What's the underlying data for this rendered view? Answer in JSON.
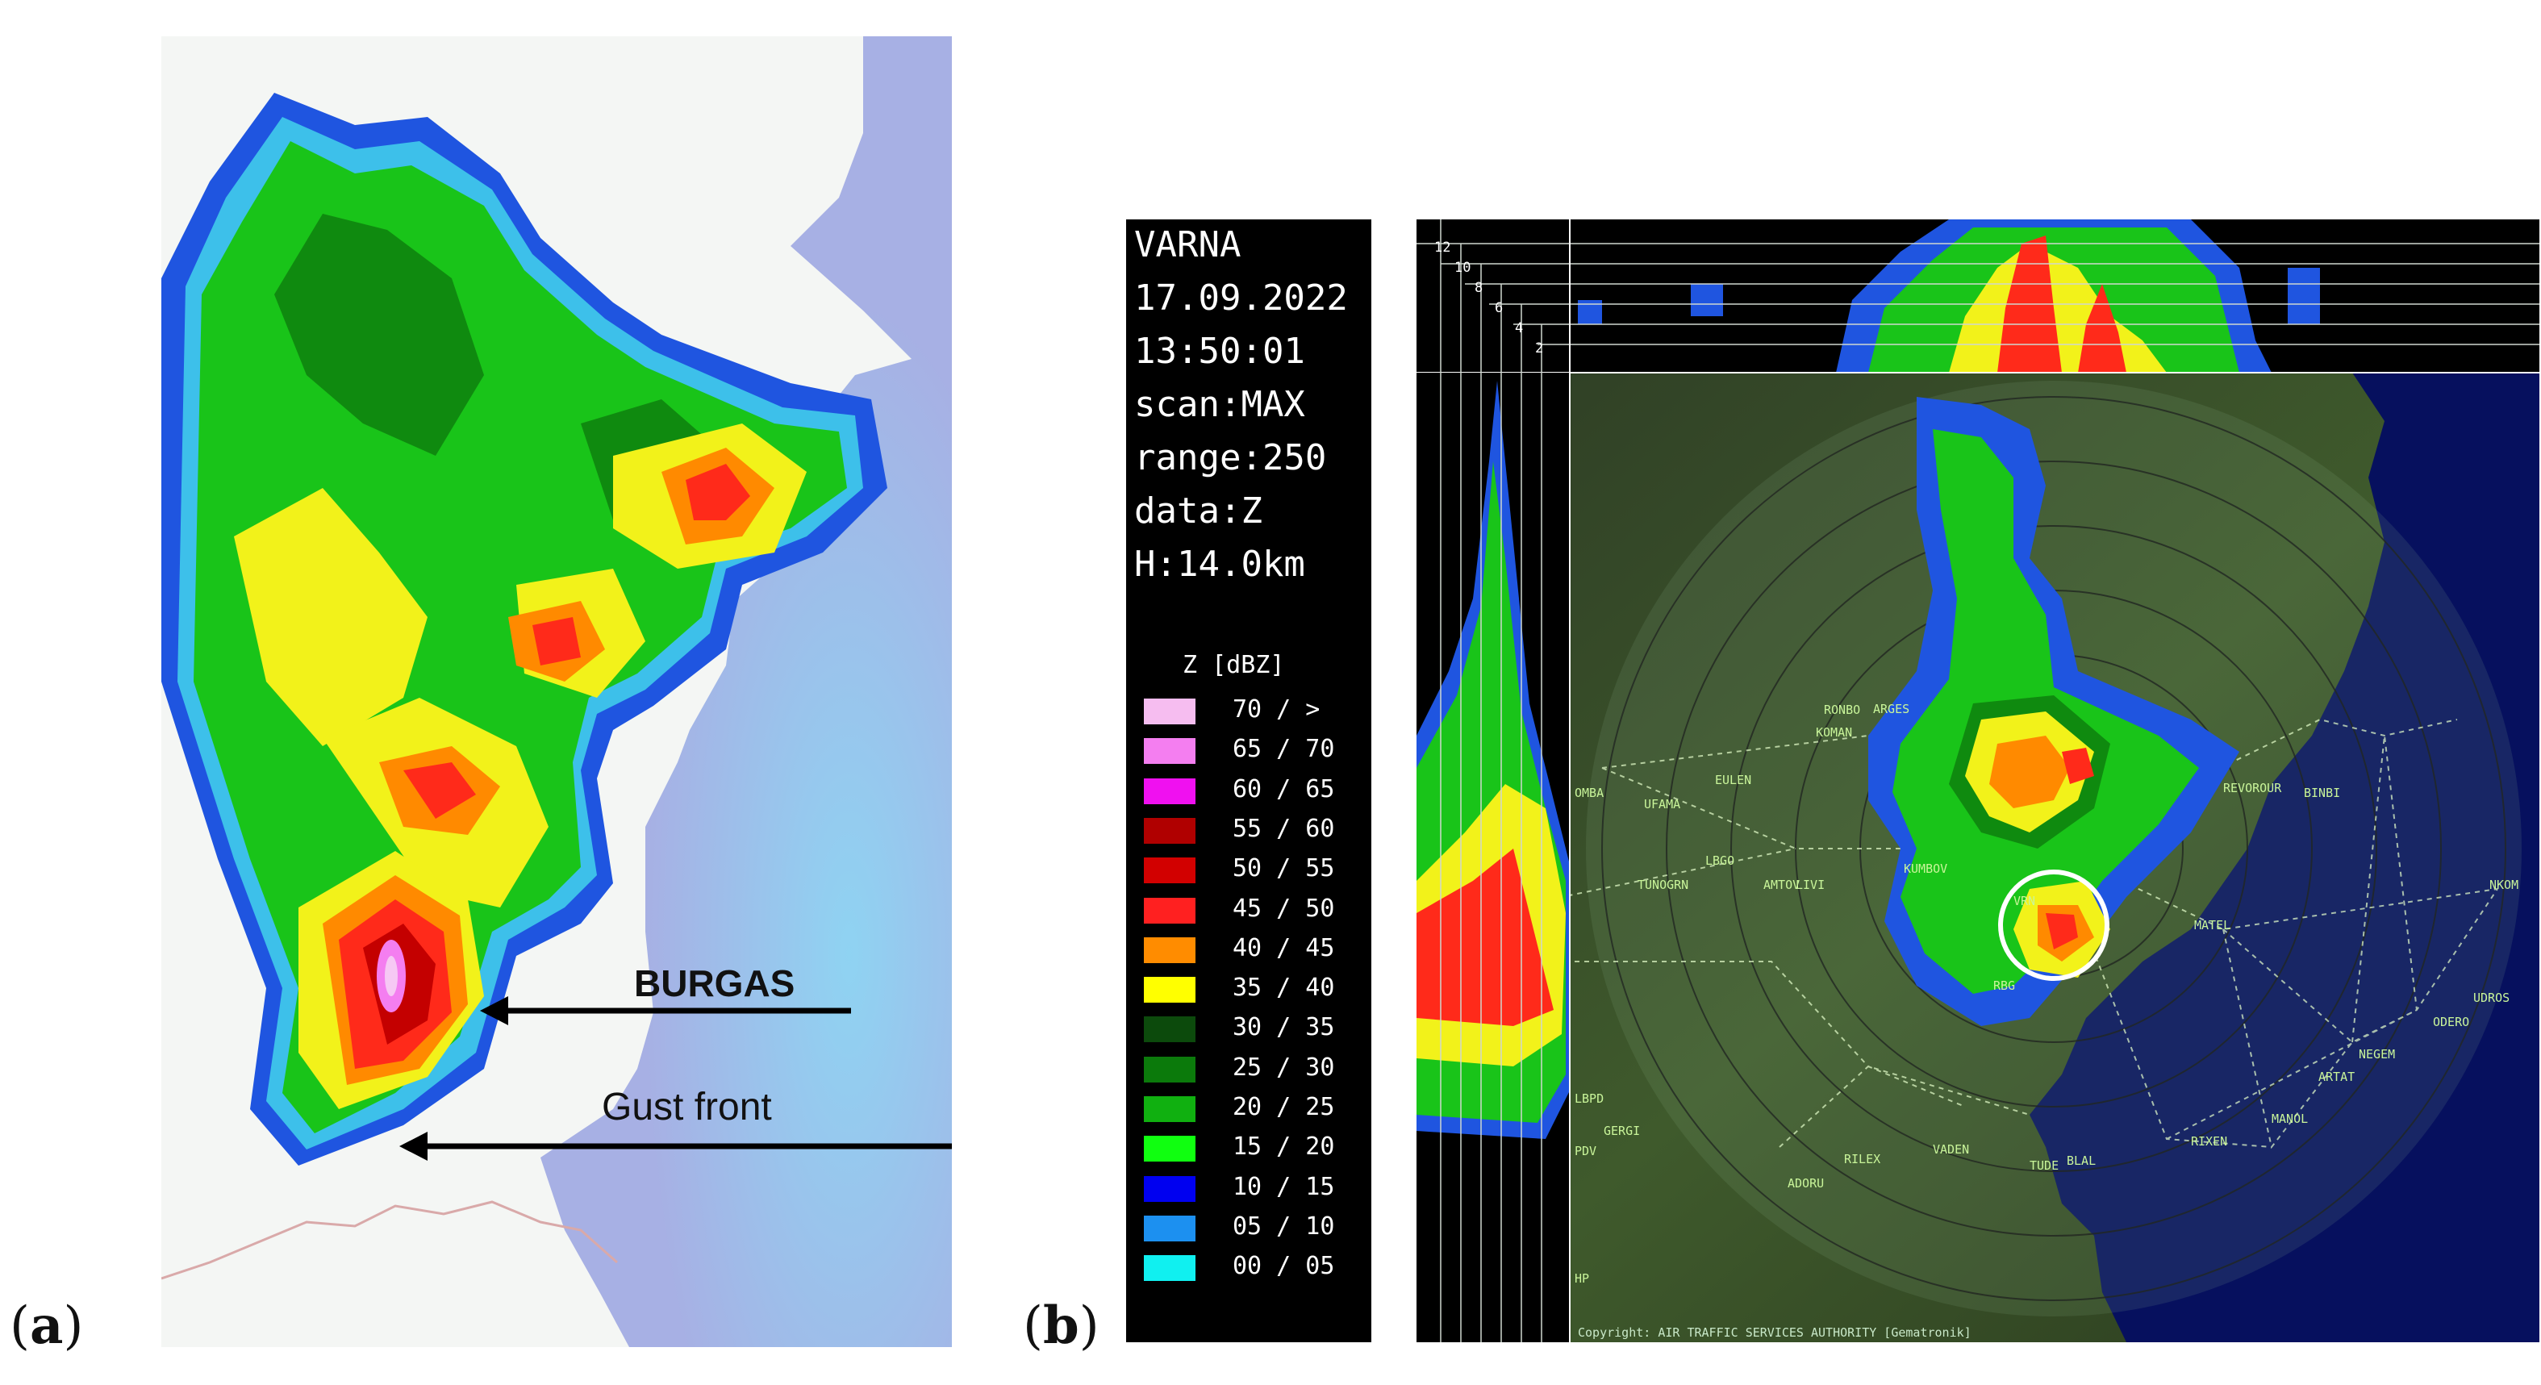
{
  "panels": {
    "a": {
      "label_open": "(",
      "label_letter": "a",
      "label_close": ")"
    },
    "b": {
      "label_open": "(",
      "label_letter": "b",
      "label_close": ")"
    }
  },
  "map_a": {
    "annotations": {
      "city": "BURGAS",
      "phenomenon": "Gust front"
    },
    "colors": {
      "sea": "#a7b0e4",
      "land": "#f4f6f4",
      "border": "#d9a9a9"
    }
  },
  "radar_info": {
    "station": "VARNA",
    "date": "17.09.2022",
    "time": "13:50:01",
    "scan": "scan:MAX",
    "range": "range:250",
    "data": "data:Z",
    "height": "H:14.0km"
  },
  "legend": {
    "title": "Z [dBZ]",
    "entries": [
      {
        "label": "70 / >",
        "color": "#f6bdf0"
      },
      {
        "label": "65 / 70",
        "color": "#f47ef0"
      },
      {
        "label": "60 / 65",
        "color": "#f010f0"
      },
      {
        "label": "55 / 60",
        "color": "#b00000"
      },
      {
        "label": "50 / 55",
        "color": "#d20000"
      },
      {
        "label": "45 / 50",
        "color": "#ff2020"
      },
      {
        "label": "40 / 45",
        "color": "#ff8c00"
      },
      {
        "label": "35 / 40",
        "color": "#ffff00"
      },
      {
        "label": "30 / 35",
        "color": "#0c4a0c"
      },
      {
        "label": "25 / 30",
        "color": "#0b7a0b"
      },
      {
        "label": "20 / 25",
        "color": "#10b010"
      },
      {
        "label": "15 / 20",
        "color": "#10ff10"
      },
      {
        "label": "10 / 15",
        "color": "#0000f0"
      },
      {
        "label": "05 / 10",
        "color": "#1c90f0"
      },
      {
        "label": "00 / 05",
        "color": "#10f0f0"
      }
    ]
  },
  "height_ticks": [
    "12",
    "10",
    "8",
    "6",
    "4",
    "2"
  ],
  "waypoints": [
    "RONBO",
    "ARGES",
    "KOMAN",
    "EULEN",
    "OMBA",
    "UFAMA",
    "LBGO",
    "TUNOGRN",
    "AMTOV",
    "LIVI",
    "KUMBOV",
    "RBG",
    "VRN",
    "REVOROUR",
    "BINBI",
    "MATEL",
    "NKOM",
    "UDROS",
    "ODERO",
    "NEGEM",
    "ARTAT",
    "MANOL",
    "RIXEN",
    "VADEN",
    "TUDE",
    "BLAL",
    "RILEX",
    "ADORU",
    "GERGI",
    "LBPD",
    "PDV",
    "HP"
  ],
  "copyright": "Copyright: AIR TRAFFIC SERVICES AUTHORITY [Gematronik]"
}
